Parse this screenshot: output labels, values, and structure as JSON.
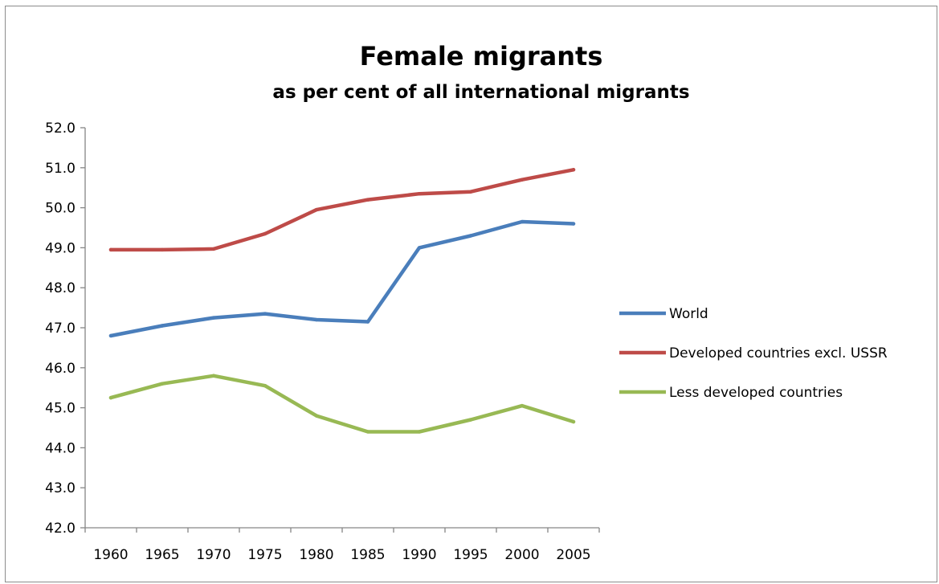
{
  "chart_data": {
    "type": "line",
    "title": "Female migrants",
    "subtitle": "as per cent of all international migrants",
    "xlabel": "",
    "ylabel": "",
    "categories": [
      "1960",
      "1965",
      "1970",
      "1975",
      "1980",
      "1985",
      "1990",
      "1995",
      "2000",
      "2005"
    ],
    "y_ticks": [
      "42.0",
      "43.0",
      "44.0",
      "45.0",
      "46.0",
      "47.0",
      "48.0",
      "49.0",
      "50.0",
      "51.0",
      "52.0"
    ],
    "ylim": [
      42,
      52
    ],
    "grid": false,
    "legend_position": "right",
    "series": [
      {
        "name": "World",
        "color": "#4a7ebb",
        "values": [
          46.8,
          47.05,
          47.25,
          47.35,
          47.2,
          47.15,
          49.0,
          49.3,
          49.65,
          49.6
        ]
      },
      {
        "name": "Developed countries excl. USSR",
        "color": "#be4b48",
        "values": [
          48.95,
          48.95,
          48.97,
          49.35,
          49.95,
          50.2,
          50.35,
          50.4,
          50.7,
          50.95
        ]
      },
      {
        "name": "Less developed countries",
        "color": "#98b954",
        "values": [
          45.25,
          45.6,
          45.8,
          45.55,
          44.8,
          44.4,
          44.4,
          44.7,
          45.05,
          44.65
        ]
      }
    ]
  }
}
